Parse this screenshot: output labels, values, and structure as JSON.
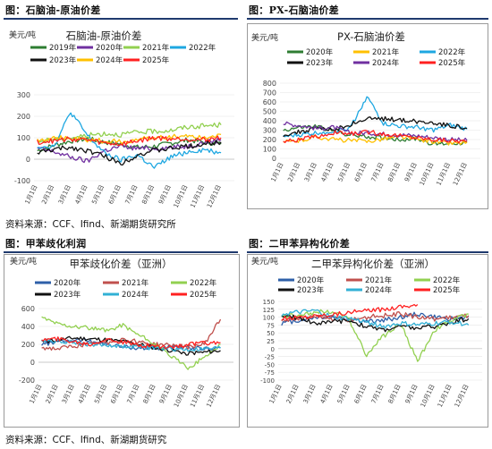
{
  "figures": [
    {
      "label": "图：石脑油-原油价差"
    },
    {
      "label": "图：PX-石脑油价差"
    },
    {
      "label": "图：甲苯歧化利润"
    },
    {
      "label": "图：二甲苯异构化价差"
    }
  ],
  "sources": {
    "top": "资料来源：CCF、Ifind、新湖期货研究所",
    "bottom": "资料来源：CCF、Ifind、新湖期货研究"
  },
  "colors": {
    "rule": "#1f3a6e"
  },
  "chart_data": [
    {
      "type": "line",
      "title": "石脑油-原油价差",
      "ylabel": "美元/吨",
      "ylim": [
        -100,
        300
      ],
      "yticks": [
        -100,
        0,
        100,
        200,
        300
      ],
      "xticks": [
        "1月1日",
        "2月1日",
        "3月1日",
        "4月1日",
        "5月1日",
        "6月1日",
        "7月1日",
        "8月1日",
        "9月1日",
        "10月1日",
        "11月1日",
        "12月1日"
      ],
      "series": [
        {
          "name": "2019年",
          "color": "#2e7d32",
          "values": [
            40,
            65,
            85,
            95,
            80,
            70,
            55,
            60,
            75,
            90,
            80,
            70
          ]
        },
        {
          "name": "2020年",
          "color": "#7030a0",
          "values": [
            50,
            35,
            10,
            -10,
            40,
            60,
            50,
            50,
            55,
            60,
            80,
            90
          ]
        },
        {
          "name": "2021年",
          "color": "#92d050",
          "values": [
            80,
            95,
            100,
            110,
            120,
            115,
            125,
            130,
            135,
            150,
            155,
            160
          ]
        },
        {
          "name": "2022年",
          "color": "#1ea7e1",
          "values": [
            60,
            60,
            220,
            110,
            30,
            -5,
            20,
            -40,
            10,
            35,
            45,
            30
          ]
        },
        {
          "name": "2023年",
          "color": "#111111",
          "values": [
            30,
            45,
            55,
            40,
            15,
            -20,
            20,
            40,
            50,
            60,
            70,
            80
          ]
        },
        {
          "name": "2024年",
          "color": "#ffc000",
          "values": [
            90,
            100,
            95,
            90,
            85,
            80,
            90,
            100,
            105,
            110,
            100,
            115
          ]
        },
        {
          "name": "2025年",
          "color": "#ff2020",
          "values": [
            80,
            85,
            95,
            90,
            75,
            70,
            85,
            100,
            95,
            95,
            90,
            100
          ]
        }
      ]
    },
    {
      "type": "line",
      "title": "PX-石脑油价差",
      "ylabel": "美元/吨",
      "ylim": [
        0,
        800
      ],
      "yticks": [
        0,
        100,
        200,
        300,
        400,
        500,
        600,
        700,
        800
      ],
      "xticks": [
        "1月1日",
        "2月1日",
        "3月1日",
        "4月1日",
        "5月1日",
        "6月1日",
        "7月1日",
        "8月1日",
        "9月1日",
        "10月1日",
        "11月1日",
        "12月1日"
      ],
      "series": [
        {
          "name": "2020年",
          "color": "#2e7d32",
          "values": [
            300,
            330,
            340,
            290,
            250,
            230,
            220,
            200,
            210,
            150,
            160,
            170
          ]
        },
        {
          "name": "2021年",
          "color": "#ffc000",
          "values": [
            170,
            190,
            230,
            200,
            190,
            180,
            210,
            230,
            200,
            180,
            160,
            170
          ]
        },
        {
          "name": "2022年",
          "color": "#1ea7e1",
          "values": [
            230,
            250,
            270,
            290,
            320,
            660,
            370,
            340,
            330,
            300,
            350,
            310
          ]
        },
        {
          "name": "2023年",
          "color": "#111111",
          "values": [
            250,
            280,
            320,
            300,
            360,
            420,
            420,
            410,
            390,
            380,
            350,
            320
          ]
        },
        {
          "name": "2024年",
          "color": "#7030a0",
          "values": [
            370,
            350,
            320,
            330,
            270,
            270,
            260,
            250,
            240,
            220,
            200,
            190
          ]
        },
        {
          "name": "2025年",
          "color": "#ff2020",
          "values": [
            180,
            200,
            230,
            270,
            260,
            280,
            260,
            240,
            220,
            200,
            190,
            180
          ]
        }
      ]
    },
    {
      "type": "line",
      "title": "甲苯歧化价差（亚洲）",
      "ylabel": "美元/吨",
      "ylim": [
        -200,
        600
      ],
      "yticks": [
        -200,
        0,
        200,
        400,
        600
      ],
      "xticks": [
        "1月1日",
        "2月1日",
        "3月1日",
        "4月1日",
        "5月1日",
        "6月1日",
        "7月1日",
        "8月1日",
        "9月1日",
        "10月1日",
        "11月1日",
        "12月1日"
      ],
      "series": [
        {
          "name": "2020年",
          "color": "#2e5fa8",
          "values": [
            200,
            230,
            250,
            240,
            200,
            170,
            160,
            150,
            170,
            160,
            150,
            160
          ]
        },
        {
          "name": "2021年",
          "color": "#c0504d",
          "values": [
            160,
            150,
            180,
            200,
            220,
            260,
            230,
            200,
            190,
            170,
            200,
            480
          ]
        },
        {
          "name": "2022年",
          "color": "#92d050",
          "values": [
            500,
            430,
            400,
            380,
            350,
            420,
            300,
            200,
            60,
            -60,
            50,
            200
          ]
        },
        {
          "name": "2023年",
          "color": "#111111",
          "values": [
            230,
            250,
            270,
            260,
            250,
            230,
            200,
            160,
            130,
            100,
            110,
            130
          ]
        },
        {
          "name": "2024年",
          "color": "#31b0d5",
          "values": [
            250,
            240,
            220,
            200,
            190,
            180,
            170,
            160,
            150,
            140,
            150,
            160
          ]
        },
        {
          "name": "2025年",
          "color": "#ff2020",
          "values": [
            250,
            260,
            230,
            200,
            260,
            220,
            190,
            180,
            170,
            200,
            210,
            220
          ]
        }
      ]
    },
    {
      "type": "line",
      "title": "二甲苯异构化价差（亚洲）",
      "ylabel": "美元/吨",
      "ylim": [
        -100,
        150
      ],
      "yticks": [
        -100,
        -75,
        -50,
        -25,
        0,
        25,
        50,
        75,
        100,
        125,
        150
      ],
      "xticks": [
        "1月1日",
        "2月1日",
        "3月1日",
        "4月1日",
        "5月1日",
        "6月1日",
        "7月1日",
        "8月1日",
        "9月1日",
        "10月1日",
        "11月1日",
        "12月1日"
      ],
      "series": [
        {
          "name": "2020年",
          "color": "#2e5fa8",
          "values": [
            80,
            90,
            100,
            100,
            95,
            85,
            90,
            100,
            110,
            100,
            95,
            100
          ]
        },
        {
          "name": "2021年",
          "color": "#c0504d",
          "values": [
            90,
            95,
            100,
            95,
            90,
            100,
            105,
            110,
            100,
            95,
            100,
            105
          ]
        },
        {
          "name": "2022年",
          "color": "#92d050",
          "values": [
            100,
            110,
            115,
            120,
            90,
            -20,
            40,
            80,
            -40,
            60,
            90,
            110
          ]
        },
        {
          "name": "2023年",
          "color": "#111111",
          "values": [
            100,
            100,
            80,
            85,
            90,
            70,
            60,
            70,
            65,
            70,
            85,
            95
          ]
        },
        {
          "name": "2024年",
          "color": "#31b0d5",
          "values": [
            110,
            115,
            120,
            100,
            95,
            85,
            70,
            80,
            75,
            80,
            85,
            75
          ]
        },
        {
          "name": "2025年",
          "color": "#ff2020",
          "values": [
            95,
            100,
            105,
            110,
            115,
            120,
            125,
            135,
            140,
            null,
            null,
            null
          ]
        }
      ]
    }
  ]
}
